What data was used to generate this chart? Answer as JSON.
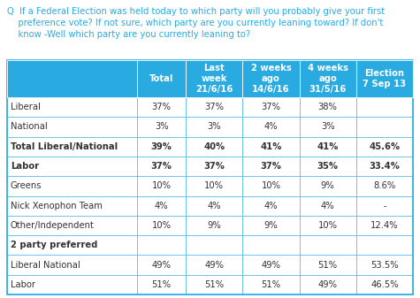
{
  "header_bg": "#29ABE2",
  "header_text_color": "#FFFFFF",
  "border_color": "#29ABE2",
  "columns": [
    "",
    "Total",
    "Last\nweek\n21/6/16",
    "2 weeks\nago\n14/6/16",
    "4 weeks\nago\n31/5/16",
    "Election\n7 Sep 13"
  ],
  "rows": [
    {
      "label": "Liberal",
      "bold": false,
      "section": false,
      "values": [
        "37%",
        "37%",
        "37%",
        "38%",
        ""
      ]
    },
    {
      "label": "National",
      "bold": false,
      "section": false,
      "values": [
        "3%",
        "3%",
        "4%",
        "3%",
        ""
      ]
    },
    {
      "label": "Total Liberal/National",
      "bold": true,
      "section": false,
      "values": [
        "39%",
        "40%",
        "41%",
        "41%",
        "45.6%"
      ]
    },
    {
      "label": "Labor",
      "bold": true,
      "section": false,
      "values": [
        "37%",
        "37%",
        "37%",
        "35%",
        "33.4%"
      ]
    },
    {
      "label": "Greens",
      "bold": false,
      "section": false,
      "values": [
        "10%",
        "10%",
        "10%",
        "9%",
        "8.6%"
      ]
    },
    {
      "label": "Nick Xenophon Team",
      "bold": false,
      "section": false,
      "values": [
        "4%",
        "4%",
        "4%",
        "4%",
        "-"
      ]
    },
    {
      "label": "Other/Independent",
      "bold": false,
      "section": false,
      "values": [
        "10%",
        "9%",
        "9%",
        "10%",
        "12.4%"
      ]
    },
    {
      "label": "2 party preferred",
      "bold": true,
      "section": true,
      "values": [
        "",
        "",
        "",
        "",
        ""
      ]
    },
    {
      "label": "Liberal National",
      "bold": false,
      "section": false,
      "values": [
        "49%",
        "49%",
        "49%",
        "51%",
        "53.5%"
      ]
    },
    {
      "label": "Labor",
      "bold": false,
      "section": false,
      "values": [
        "51%",
        "51%",
        "51%",
        "49%",
        "46.5%"
      ]
    }
  ],
  "col_widths": [
    2.2,
    0.82,
    0.96,
    0.96,
    0.96,
    0.96
  ],
  "question_color": "#29ABE2",
  "question_q_color": "#29ABE2",
  "text_color": "#444444",
  "question_fontsize": 7.2,
  "header_fontsize": 7.2,
  "cell_fontsize": 7.2
}
